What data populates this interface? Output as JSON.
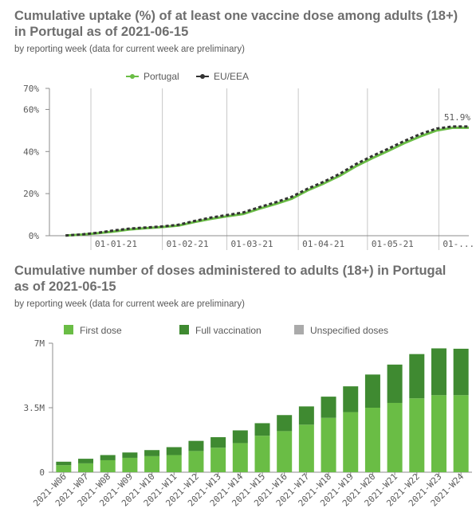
{
  "chart_data": [
    {
      "type": "line",
      "title": "Cumulative uptake (%) of at least one vaccine dose among adults (18+) in Portugal as of 2021-06-15",
      "subtitle": "by reporting week (data for current week are preliminary)",
      "xlabel": "",
      "ylabel": "",
      "y_ticks": [
        "0%",
        "20%",
        "40%",
        "60%",
        "70%"
      ],
      "x_ticks": [
        "01-01-21",
        "01-02-21",
        "01-03-21",
        "01-04-21",
        "01-05-21",
        "01-..."
      ],
      "ylim": [
        0,
        70
      ],
      "x_range": [
        "2020-12-14",
        "2021-06-14"
      ],
      "grid": "vertical lines at month starts",
      "legend": {
        "position": "top-center",
        "entries": [
          "Portugal",
          "EU/EEA"
        ]
      },
      "annotation": "51.9%",
      "colors": {
        "Portugal": "#6abd45",
        "EU/EEA": "#333333"
      },
      "series": [
        {
          "name": "Portugal",
          "x": [
            "2020-12-21",
            "2020-12-28",
            "2021-01-04",
            "2021-01-11",
            "2021-01-18",
            "2021-01-25",
            "2021-02-01",
            "2021-02-08",
            "2021-02-15",
            "2021-02-22",
            "2021-03-01",
            "2021-03-08",
            "2021-03-15",
            "2021-03-22",
            "2021-03-29",
            "2021-04-05",
            "2021-04-12",
            "2021-04-19",
            "2021-04-26",
            "2021-05-03",
            "2021-05-10",
            "2021-05-17",
            "2021-05-24",
            "2021-05-31",
            "2021-06-07",
            "2021-06-14"
          ],
          "y": [
            0.1,
            0.5,
            1.2,
            2.0,
            3.0,
            3.6,
            4.1,
            4.8,
            6.5,
            8.0,
            9.2,
            10.3,
            12.8,
            15.0,
            17.5,
            21.5,
            24.8,
            28.5,
            33.0,
            36.8,
            40.3,
            44.0,
            47.2,
            50.0,
            51.3,
            51.3
          ]
        },
        {
          "name": "EU/EEA",
          "x": [
            "2020-12-21",
            "2020-12-28",
            "2021-01-04",
            "2021-01-11",
            "2021-01-18",
            "2021-01-25",
            "2021-02-01",
            "2021-02-08",
            "2021-02-15",
            "2021-02-22",
            "2021-03-01",
            "2021-03-08",
            "2021-03-15",
            "2021-03-22",
            "2021-03-29",
            "2021-04-05",
            "2021-04-12",
            "2021-04-19",
            "2021-04-26",
            "2021-05-03",
            "2021-05-10",
            "2021-05-17",
            "2021-05-24",
            "2021-05-31",
            "2021-06-07",
            "2021-06-14"
          ],
          "y": [
            0.1,
            0.6,
            1.4,
            2.5,
            3.4,
            3.9,
            4.4,
            5.2,
            7.0,
            8.6,
            9.8,
            11.0,
            13.5,
            15.8,
            18.4,
            22.3,
            25.6,
            29.4,
            34.0,
            37.8,
            41.3,
            45.0,
            48.3,
            50.9,
            51.9,
            51.9
          ]
        }
      ]
    },
    {
      "type": "bar",
      "stacked": true,
      "title": "Cumulative number of doses administered to adults (18+) in Portugal as of 2021-06-15",
      "subtitle": "by reporting week (data for current week are preliminary)",
      "xlabel": "",
      "ylabel": "",
      "y_ticks": [
        "0",
        "3.5M",
        "7M"
      ],
      "ylim": [
        0,
        7000000
      ],
      "legend": {
        "position": "top",
        "entries": [
          "First dose",
          "Full vaccination",
          "Unspecified doses"
        ]
      },
      "colors": {
        "First dose": "#6abd45",
        "Full vaccination": "#3f8a31",
        "Unspecified doses": "#aaaaaa"
      },
      "categories": [
        "2021-W06",
        "2021-W07",
        "2021-W08",
        "2021-W09",
        "2021-W10",
        "2021-W11",
        "2021-W12",
        "2021-W13",
        "2021-W14",
        "2021-W15",
        "2021-W16",
        "2021-W17",
        "2021-W18",
        "2021-W19",
        "2021-W20",
        "2021-W21",
        "2021-W22",
        "2021-W23",
        "2021-W24"
      ],
      "series": [
        {
          "name": "First dose",
          "values": [
            380000,
            480000,
            650000,
            780000,
            870000,
            930000,
            1150000,
            1330000,
            1580000,
            1980000,
            2230000,
            2580000,
            2950000,
            3260000,
            3500000,
            3760000,
            4010000,
            4180000,
            4180000
          ]
        },
        {
          "name": "Full vaccination",
          "values": [
            190000,
            250000,
            280000,
            290000,
            330000,
            430000,
            550000,
            570000,
            690000,
            680000,
            870000,
            990000,
            1150000,
            1400000,
            1800000,
            2080000,
            2400000,
            2540000,
            2520000
          ]
        },
        {
          "name": "Unspecified doses",
          "values": [
            0,
            0,
            0,
            0,
            0,
            0,
            0,
            0,
            0,
            0,
            0,
            0,
            0,
            0,
            0,
            0,
            0,
            0,
            0
          ]
        }
      ]
    }
  ]
}
